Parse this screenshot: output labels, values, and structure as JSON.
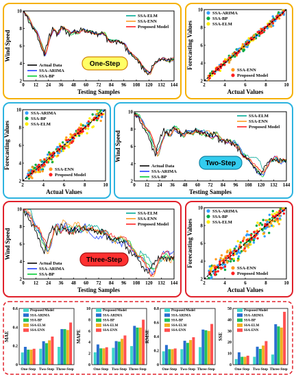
{
  "colors": {
    "actual": "#000000",
    "arima": "#1f3fff",
    "bp": "#00cc33",
    "elm": "#00a896",
    "enn": "#ff9a1f",
    "proposed": "#ff2020",
    "scatter_arima": "#33a0ff",
    "scatter_bp": "#00aa44",
    "scatter_elm": "#ffee00",
    "scatter_enn": "#ff9a1f",
    "scatter_proposed": "#ff2020",
    "frame_one": "#f5b000",
    "frame_two": "#2bb3e0",
    "frame_three": "#e0202a",
    "badge_one": "#ffff66",
    "badge_two": "#33ccee",
    "badge_three": "#ff3030",
    "bar_proposed": "#3fd7c8",
    "bar_arima": "#2a6fd0",
    "bar_bp": "#20c060",
    "bar_elm": "#f0b020",
    "bar_enn": "#ff5050"
  },
  "panels": {
    "one": {
      "badge": "One-Step"
    },
    "two": {
      "badge": "Two-Step"
    },
    "three": {
      "badge": "Three-Step"
    }
  },
  "chart_data": [
    {
      "type": "line",
      "id": "ts-one",
      "xlabel": "Testing Samples",
      "ylabel": "Wind Speed",
      "xlim": [
        0,
        144
      ],
      "ylim": [
        2,
        10
      ],
      "xticks": [
        "0",
        "12",
        "24",
        "36",
        "48",
        "60",
        "72",
        "84",
        "96",
        "108",
        "120",
        "132",
        "144"
      ],
      "yticks": [
        "2",
        "4",
        "6",
        "8",
        "10"
      ],
      "legend": [
        "Actual Data",
        "SSA-ARIMA",
        "SSA-BP",
        "SSA-ELM",
        "SSA-ENN",
        "Proposed Model"
      ],
      "x": [
        0,
        4,
        8,
        12,
        16,
        20,
        24,
        28,
        32,
        36,
        40,
        44,
        48,
        52,
        56,
        60,
        64,
        68,
        72,
        76,
        80,
        84,
        88,
        92,
        96,
        100,
        104,
        108,
        112,
        116,
        120,
        124,
        128,
        132,
        136,
        140,
        144
      ],
      "actual": [
        9.8,
        9.2,
        8.2,
        7.6,
        6.2,
        5.0,
        6.8,
        8.0,
        7.3,
        8.2,
        7.8,
        7.4,
        7.7,
        7.5,
        7.9,
        7.7,
        7.6,
        7.4,
        7.3,
        7.5,
        6.8,
        6.5,
        6.6,
        6.4,
        6.2,
        5.3,
        4.9,
        4.5,
        3.8,
        3.1,
        2.7,
        3.8,
        4.3,
        4.5,
        4.3,
        4.4,
        4.5
      ]
    },
    {
      "type": "scatter",
      "id": "sc-one",
      "xlabel": "Actual Values",
      "ylabel": "Forecasting Values",
      "xlim": [
        2,
        10
      ],
      "ylim": [
        2,
        10
      ],
      "xticks": [
        "2",
        "4",
        "6",
        "8",
        "10"
      ],
      "yticks": [
        "2",
        "4",
        "6",
        "8",
        "10"
      ],
      "legend": [
        "SSA-ARIMA",
        "SSA-BP",
        "SSA-ELM",
        "SSA-ENN",
        "Proposed Model"
      ],
      "spread": 0.35
    },
    {
      "type": "scatter",
      "id": "sc-two",
      "xlabel": "Actual Values",
      "ylabel": "Forecasting Values",
      "xlim": [
        2,
        10
      ],
      "ylim": [
        2,
        10
      ],
      "xticks": [
        "2",
        "4",
        "6",
        "8",
        "10"
      ],
      "yticks": [
        "2",
        "4",
        "6",
        "8",
        "10"
      ],
      "legend": [
        "SSA-ARIMA",
        "SSA-BP",
        "SSA-ELM",
        "SSA-ENN",
        "Proposed Model"
      ],
      "spread": 0.6
    },
    {
      "type": "line",
      "id": "ts-two",
      "xlabel": "Testing Samples",
      "ylabel": "Wind Speed",
      "xlim": [
        0,
        144
      ],
      "ylim": [
        2,
        10
      ],
      "xticks": [
        "0",
        "12",
        "24",
        "36",
        "48",
        "60",
        "72",
        "84",
        "96",
        "108",
        "120",
        "132",
        "144"
      ],
      "yticks": [
        "2",
        "4",
        "6",
        "8",
        "10"
      ],
      "legend": [
        "Actual Data",
        "SSA-ARIMA",
        "SSA-BP",
        "SSA-ELM",
        "SSA-ENN",
        "Proposed Model"
      ]
    },
    {
      "type": "line",
      "id": "ts-three",
      "xlabel": "Testing Samples",
      "ylabel": "Wind Speed",
      "xlim": [
        0,
        144
      ],
      "ylim": [
        2,
        10
      ],
      "xticks": [
        "0",
        "12",
        "24",
        "36",
        "48",
        "60",
        "72",
        "84",
        "96",
        "108",
        "120",
        "132",
        "144"
      ],
      "yticks": [
        "2",
        "4",
        "6",
        "8",
        "10"
      ],
      "legend": [
        "Actual Data",
        "SSA-ARIMA",
        "SSA-BP",
        "SSA-ELM",
        "SSA-ENN",
        "Proposed Model"
      ]
    },
    {
      "type": "scatter",
      "id": "sc-three",
      "xlabel": "Actual Values",
      "ylabel": "Forecasting Values",
      "xlim": [
        2,
        10
      ],
      "ylim": [
        2,
        10
      ],
      "xticks": [
        "2",
        "4",
        "6",
        "8",
        "10"
      ],
      "yticks": [
        "2",
        "4",
        "6",
        "8",
        "10"
      ],
      "legend": [
        "SSA-ARIMA",
        "SSA-BP",
        "SSA-ELM",
        "SSA-ENN",
        "Proposed Model"
      ],
      "spread": 0.9
    },
    {
      "type": "bar",
      "id": "bar-mae",
      "ylabel": "MAE",
      "categories": [
        "One-Step",
        "Two-Step",
        "Three-Step"
      ],
      "ylim": [
        0,
        0.6
      ],
      "yticks": [
        "0",
        "0.2",
        "0.4",
        "0.6"
      ],
      "series": [
        {
          "name": "Proposed Model",
          "values": [
            0.13,
            0.17,
            0.19
          ]
        },
        {
          "name": "SSA-ARIMA",
          "values": [
            0.19,
            0.25,
            0.38
          ]
        },
        {
          "name": "SSA-BP",
          "values": [
            0.16,
            0.23,
            0.38
          ]
        },
        {
          "name": "SSA-ELM",
          "values": [
            0.16,
            0.26,
            0.37
          ]
        },
        {
          "name": "SSA-ENN",
          "values": [
            0.17,
            0.3,
            0.45
          ]
        }
      ]
    },
    {
      "type": "bar",
      "id": "bar-mape",
      "ylabel": "MAPE",
      "categories": [
        "One-Step",
        "Two-Step",
        "Three-Step"
      ],
      "ylim": [
        0,
        10
      ],
      "yticks": [
        "0",
        "2",
        "4",
        "6",
        "8",
        "10"
      ],
      "series": [
        {
          "name": "Proposed Model",
          "values": [
            2.2,
            3.0,
            3.3
          ]
        },
        {
          "name": "SSA-ARIMA",
          "values": [
            3.6,
            4.2,
            6.9
          ]
        },
        {
          "name": "SSA-BP",
          "values": [
            2.9,
            4.1,
            6.6
          ]
        },
        {
          "name": "SSA-ELM",
          "values": [
            2.9,
            4.6,
            6.6
          ]
        },
        {
          "name": "SSA-ENN",
          "values": [
            3.1,
            5.2,
            8.0
          ]
        }
      ]
    },
    {
      "type": "bar",
      "id": "bar-rmse",
      "ylabel": "RMSE",
      "categories": [
        "One-Step",
        "Two-Step",
        "Three-Step"
      ],
      "ylim": [
        0,
        0.8
      ],
      "yticks": [
        "0",
        "0.2",
        "0.4",
        "0.6",
        "0.8"
      ],
      "series": [
        {
          "name": "Proposed Model",
          "values": [
            0.19,
            0.22,
            0.25
          ]
        },
        {
          "name": "SSA-ARIMA",
          "values": [
            0.28,
            0.34,
            0.5
          ]
        },
        {
          "name": "SSA-BP",
          "values": [
            0.22,
            0.31,
            0.49
          ]
        },
        {
          "name": "SSA-ELM",
          "values": [
            0.22,
            0.35,
            0.48
          ]
        },
        {
          "name": "SSA-ENN",
          "values": [
            0.23,
            0.39,
            0.58
          ]
        }
      ]
    },
    {
      "type": "bar",
      "id": "bar-sse",
      "ylabel": "SSE",
      "categories": [
        "One-Step",
        "Two-Step",
        "Three-Step"
      ],
      "ylim": [
        0,
        50
      ],
      "yticks": [
        "0",
        "10",
        "20",
        "30",
        "40",
        "50"
      ],
      "series": [
        {
          "name": "Proposed Model",
          "values": [
            5,
            7,
            9
          ]
        },
        {
          "name": "SSA-ARIMA",
          "values": [
            11,
            16,
            36
          ]
        },
        {
          "name": "SSA-BP",
          "values": [
            7,
            14,
            34
          ]
        },
        {
          "name": "SSA-ELM",
          "values": [
            7,
            17,
            33
          ]
        },
        {
          "name": "SSA-ENN",
          "values": [
            8,
            21,
            47
          ]
        }
      ]
    }
  ]
}
